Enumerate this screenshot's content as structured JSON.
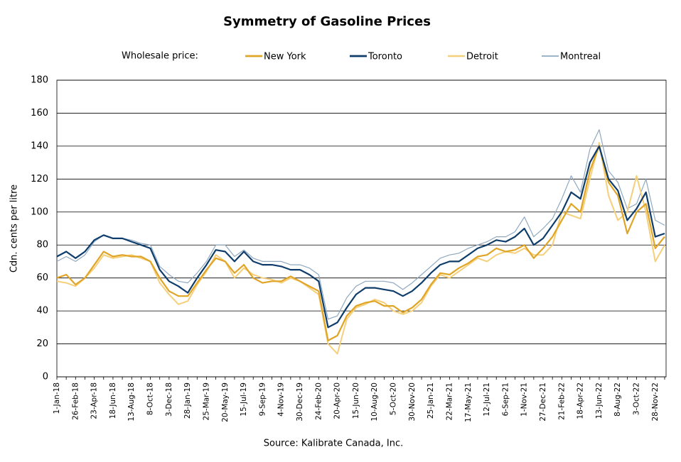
{
  "chart_data": {
    "type": "line",
    "title": "Symmetry of Gasoline Prices",
    "legend_title": "Wholesale price:",
    "y_label": "Cdn. cents per litre",
    "source": "Source:  Kalibrate Canada, Inc.",
    "categories": [
      "1-Jan-18",
      null,
      "26-Feb-18",
      null,
      "23-Apr-18",
      null,
      "18-Jun-18",
      null,
      "13-Aug-18",
      null,
      "8-Oct-18",
      null,
      "3-Dec-18",
      null,
      "28-Jan-19",
      null,
      "25-Mar-19",
      null,
      "20-May-19",
      null,
      "15-Jul-19",
      null,
      "9-Sep-19",
      null,
      "4-Nov-19",
      null,
      "30-Dec-19",
      null,
      "24-Feb-20",
      null,
      "20-Apr-20",
      null,
      "15-Jun-20",
      null,
      "10-Aug-20",
      null,
      "5-Oct-20",
      null,
      "30-Nov-20",
      null,
      "25-Jan-21",
      null,
      "22-Mar-21",
      null,
      "17-May-21",
      null,
      "12-Jul-21",
      null,
      "6-Sep-21",
      null,
      "1-Nov-21",
      null,
      "27-Dec-21",
      null,
      "21-Feb-22",
      null,
      "18-Apr-22",
      null,
      "13-Jun-22",
      null,
      "8-Aug-22",
      null,
      "3-Oct-22",
      null,
      "28-Nov-22",
      null
    ],
    "series": [
      {
        "name": "New York",
        "color": "#e0a526",
        "width": 2.2,
        "values": [
          60,
          62,
          56,
          60,
          68,
          76,
          73,
          74,
          73,
          73,
          70,
          60,
          52,
          49,
          49,
          57,
          65,
          72,
          70,
          63,
          68,
          60,
          57,
          58,
          58,
          61,
          58,
          55,
          52,
          22,
          25,
          37,
          43,
          45,
          46,
          43,
          43,
          39,
          42,
          47,
          56,
          63,
          62,
          66,
          69,
          73,
          74,
          78,
          76,
          77,
          80,
          72,
          78,
          85,
          95,
          105,
          100,
          125,
          140,
          118,
          110,
          87,
          100,
          105,
          78,
          85
        ]
      },
      {
        "name": "Toronto",
        "color": "#0e3d6b",
        "width": 2.2,
        "values": [
          73,
          76,
          72,
          76,
          83,
          86,
          84,
          84,
          82,
          80,
          78,
          65,
          58,
          55,
          51,
          60,
          68,
          77,
          76,
          70,
          76,
          70,
          68,
          68,
          67,
          65,
          65,
          62,
          58,
          30,
          33,
          42,
          50,
          54,
          54,
          53,
          52,
          49,
          52,
          57,
          63,
          68,
          70,
          70,
          74,
          78,
          80,
          83,
          82,
          85,
          90,
          80,
          84,
          92,
          100,
          112,
          108,
          130,
          140,
          120,
          113,
          95,
          102,
          112,
          85,
          87
        ]
      },
      {
        "name": "Detroit",
        "color": "#f5cf7a",
        "width": 2,
        "values": [
          58,
          57,
          55,
          60,
          66,
          74,
          72,
          73,
          74,
          72,
          70,
          57,
          50,
          44,
          46,
          56,
          64,
          74,
          70,
          60,
          66,
          62,
          60,
          59,
          57,
          60,
          58,
          54,
          50,
          20,
          14,
          35,
          42,
          44,
          47,
          45,
          40,
          38,
          40,
          45,
          55,
          62,
          60,
          64,
          68,
          72,
          70,
          74,
          76,
          75,
          78,
          74,
          74,
          80,
          100,
          98,
          96,
          120,
          142,
          110,
          95,
          100,
          122,
          100,
          70,
          80
        ]
      },
      {
        "name": "Montreal",
        "color": "#8fa8c0",
        "width": 1.2,
        "values": [
          70,
          73,
          70,
          74,
          82,
          86,
          84,
          84,
          83,
          81,
          80,
          67,
          62,
          58,
          57,
          63,
          70,
          80,
          80,
          73,
          77,
          72,
          70,
          70,
          70,
          68,
          68,
          66,
          62,
          35,
          37,
          48,
          55,
          58,
          58,
          58,
          57,
          53,
          57,
          62,
          67,
          72,
          74,
          75,
          78,
          80,
          82,
          85,
          85,
          88,
          97,
          85,
          90,
          96,
          108,
          122,
          112,
          138,
          150,
          125,
          118,
          102,
          105,
          120,
          95,
          92
        ]
      }
    ],
    "ylim": [
      0,
      180
    ],
    "yticks": [
      0,
      20,
      40,
      60,
      80,
      100,
      120,
      140,
      160,
      180
    ],
    "grid": true
  }
}
